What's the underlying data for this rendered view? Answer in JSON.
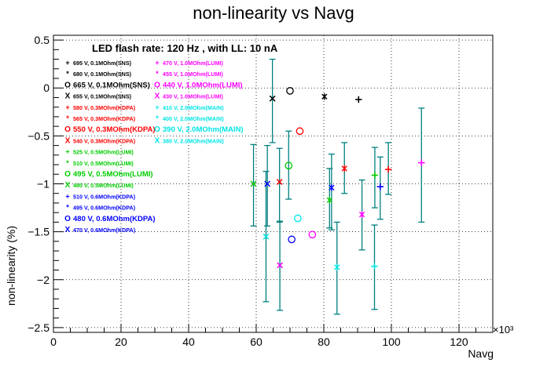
{
  "chart_data": {
    "type": "scatter",
    "title": "non-linearity vs Navg",
    "xlabel": "Navg",
    "ylabel": "non-linearity (%)",
    "x_exponent_label": "×10³",
    "xlim": [
      0,
      130
    ],
    "ylim": [
      -2.55,
      0.55
    ],
    "x_ticks": [
      "0",
      "20",
      "40",
      "60",
      "80",
      "100",
      "120"
    ],
    "y_ticks": [
      "0.5",
      "0",
      "−0.5",
      "−1",
      "−1.5",
      "−2",
      "−2.5"
    ],
    "grid": true,
    "error_bar_color": "#007f7f",
    "annotation": "LED flash rate: 120 Hz , with LL: 10 nA",
    "legend_columns": [
      [
        {
          "marker": "+",
          "label": "695 V, 0.1MOhm(SNS)",
          "color": "#000000"
        },
        {
          "marker": "*",
          "label": "680 V, 0.1MOhm(SNS)",
          "color": "#000000"
        },
        {
          "marker": "O",
          "label": "665 V, 0.1MOhm(SNS)",
          "color": "#000000"
        },
        {
          "marker": "X",
          "label": "655 V, 0.1MOhm(SNS)",
          "color": "#000000"
        },
        {
          "marker": "+",
          "label": "580 V, 0.3MOhm(KDPA)",
          "color": "#ff0000"
        },
        {
          "marker": "*",
          "label": "565 V, 0.3MOhm(KDPA)",
          "color": "#ff0000"
        },
        {
          "marker": "O",
          "label": "550 V, 0.3MOhm(KDPA)",
          "color": "#ff0000"
        },
        {
          "marker": "X",
          "label": "540 V, 0.3MOhm(KDPA)",
          "color": "#ff0000"
        },
        {
          "marker": "+",
          "label": "525 V, 0.5MOhm(LUMI)",
          "color": "#00cc00"
        },
        {
          "marker": "*",
          "label": "510 V, 0.5MOhm(LUMI)",
          "color": "#00cc00"
        },
        {
          "marker": "O",
          "label": "495 V, 0.5MOhm(LUMI)",
          "color": "#00cc00"
        },
        {
          "marker": "X",
          "label": "480 V, 0.5MOhm(LUMI)",
          "color": "#00cc00"
        },
        {
          "marker": "+",
          "label": "510 V, 0.6MOhm(KDPA)",
          "color": "#0000ff"
        },
        {
          "marker": "*",
          "label": "495 V, 0.6MOhm(KDPA)",
          "color": "#0000ff"
        },
        {
          "marker": "O",
          "label": "480 V, 0.6MOhm(KDPA)",
          "color": "#0000ff"
        },
        {
          "marker": "X",
          "label": "470 V, 0.6MOhm(KDPA)",
          "color": "#0000ff"
        }
      ],
      [
        {
          "marker": "+",
          "label": "470 V, 1.0MOhm(LUMI)",
          "color": "#ff00ff"
        },
        {
          "marker": "*",
          "label": "455 V, 1.0MOhm(LUMI)",
          "color": "#ff00ff"
        },
        {
          "marker": "O",
          "label": "440 V, 1.0MOhm(LUMI)",
          "color": "#ff00ff"
        },
        {
          "marker": "X",
          "label": "430 V, 1.0MOhm(LUMI)",
          "color": "#ff00ff"
        },
        {
          "marker": "+",
          "label": "410 V, 2.0MOhm(MAIN)",
          "color": "#00e5e5"
        },
        {
          "marker": "*",
          "label": "400 V, 2.0MOhm(MAIN)",
          "color": "#00e5e5"
        },
        {
          "marker": "O",
          "label": "390 V, 2.0MOhm(MAIN)",
          "color": "#00e5e5"
        },
        {
          "marker": "X",
          "label": "380 V, 2.0MOhm(MAIN)",
          "color": "#00e5e5"
        }
      ]
    ],
    "points": [
      {
        "x": 90.3,
        "y": -0.12,
        "ylo": -0.12,
        "yhi": -0.12,
        "marker": "+",
        "color": "#000000"
      },
      {
        "x": 80.2,
        "y": -0.09,
        "ylo": -0.09,
        "yhi": -0.09,
        "marker": "*",
        "color": "#000000"
      },
      {
        "x": 70.0,
        "y": -0.03,
        "ylo": -0.03,
        "yhi": -0.03,
        "marker": "O",
        "color": "#000000"
      },
      {
        "x": 64.8,
        "y": -0.11,
        "ylo": -0.57,
        "yhi": 0.3,
        "marker": "X",
        "color": "#000000"
      },
      {
        "x": 99.1,
        "y": -0.85,
        "ylo": -1.11,
        "yhi": -0.57,
        "marker": "+",
        "color": "#ff0000"
      },
      {
        "x": 86.1,
        "y": -0.84,
        "ylo": -1.1,
        "yhi": -0.57,
        "marker": "*",
        "color": "#ff0000"
      },
      {
        "x": 72.9,
        "y": -0.45,
        "ylo": -0.45,
        "yhi": -0.45,
        "marker": "O",
        "color": "#ff0000"
      },
      {
        "x": 66.9,
        "y": -0.98,
        "ylo": -1.4,
        "yhi": -0.63,
        "marker": "X",
        "color": "#ff0000"
      },
      {
        "x": 95.1,
        "y": -0.91,
        "ylo": -1.25,
        "yhi": -0.62,
        "marker": "+",
        "color": "#00cc00"
      },
      {
        "x": 81.7,
        "y": -1.17,
        "ylo": -1.46,
        "yhi": -0.84,
        "marker": "*",
        "color": "#00cc00"
      },
      {
        "x": 69.6,
        "y": -0.81,
        "ylo": -1.16,
        "yhi": -0.45,
        "marker": "O",
        "color": "#00cc00"
      },
      {
        "x": 59.2,
        "y": -1.0,
        "ylo": -1.44,
        "yhi": -0.59,
        "marker": "X",
        "color": "#00cc00"
      },
      {
        "x": 96.7,
        "y": -1.03,
        "ylo": -1.37,
        "yhi": -0.72,
        "marker": "+",
        "color": "#0000ff"
      },
      {
        "x": 82.3,
        "y": -1.04,
        "ylo": -1.48,
        "yhi": -0.69,
        "marker": "*",
        "color": "#0000ff"
      },
      {
        "x": 70.5,
        "y": -1.58,
        "ylo": -1.58,
        "yhi": -1.58,
        "marker": "O",
        "color": "#0000ff"
      },
      {
        "x": 63.3,
        "y": -1.0,
        "ylo": -1.44,
        "yhi": -0.6,
        "marker": "X",
        "color": "#0000ff"
      },
      {
        "x": 108.9,
        "y": -0.78,
        "ylo": -1.4,
        "yhi": -0.21,
        "marker": "+",
        "color": "#ff00ff"
      },
      {
        "x": 91.3,
        "y": -1.32,
        "ylo": -1.69,
        "yhi": -0.96,
        "marker": "*",
        "color": "#ff00ff"
      },
      {
        "x": 76.6,
        "y": -1.53,
        "ylo": -1.53,
        "yhi": -1.53,
        "marker": "O",
        "color": "#ff00ff"
      },
      {
        "x": 67.0,
        "y": -1.85,
        "ylo": -2.32,
        "yhi": -1.39,
        "marker": "X",
        "color": "#ff00ff"
      },
      {
        "x": 95.0,
        "y": -1.86,
        "ylo": -2.31,
        "yhi": -1.43,
        "marker": "+",
        "color": "#00e5e5"
      },
      {
        "x": 83.9,
        "y": -1.87,
        "ylo": -2.36,
        "yhi": -1.4,
        "marker": "*",
        "color": "#00e5e5"
      },
      {
        "x": 72.3,
        "y": -1.36,
        "ylo": -1.36,
        "yhi": -1.36,
        "marker": "O",
        "color": "#00e5e5"
      },
      {
        "x": 62.9,
        "y": -1.55,
        "ylo": -2.23,
        "yhi": -0.87,
        "marker": "X",
        "color": "#00e5e5"
      }
    ]
  }
}
